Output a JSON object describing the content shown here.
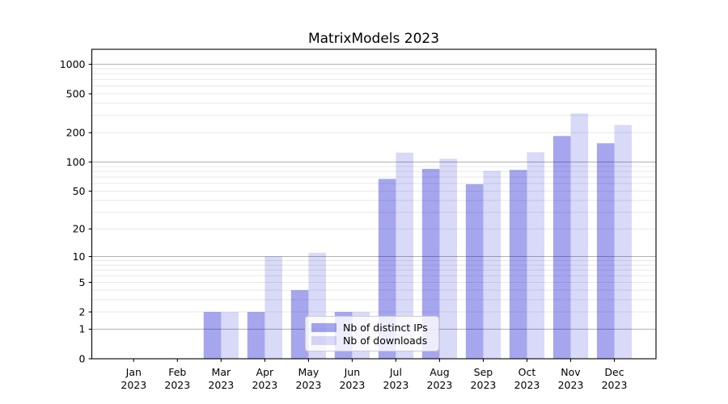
{
  "figure": {
    "title": "MatrixModels 2023"
  },
  "legend": {
    "items": [
      {
        "label": "Nb of distinct IPs",
        "swatch_color": "rgba(0,0,205,0.35)"
      },
      {
        "label": "Nb of downloads",
        "swatch_color": "rgba(0,0,205,0.15)"
      }
    ]
  },
  "chart_data": {
    "type": "bar",
    "title": "MatrixModels 2023",
    "categories": [
      "Jan",
      "Feb",
      "Mar",
      "Apr",
      "May",
      "Jun",
      "Jul",
      "Aug",
      "Sep",
      "Oct",
      "Nov",
      "Dec"
    ],
    "year_label": "2023",
    "series": [
      {
        "name": "Nb of distinct IPs",
        "color": "rgba(0,0,205,0.35)",
        "values": [
          0,
          0,
          2,
          2,
          4,
          2,
          67,
          85,
          59,
          83,
          185,
          156
        ]
      },
      {
        "name": "Nb of downloads",
        "color": "rgba(0,0,205,0.15)",
        "values": [
          0,
          0,
          2,
          10,
          11,
          2,
          125,
          108,
          81,
          126,
          315,
          240
        ]
      }
    ],
    "yscale": "log10(1+v)",
    "ylim": [
      0,
      1400
    ],
    "y_ticks": [
      0,
      1,
      2,
      5,
      10,
      20,
      50,
      100,
      200,
      500,
      1000
    ],
    "grid": {
      "major_values": [
        1,
        10,
        100,
        1000
      ],
      "minor": true,
      "major_color": "#b0b0b0",
      "minor_color": "#e8e8e8"
    },
    "xlabel": "",
    "ylabel": "",
    "legend_position": "lower center"
  }
}
